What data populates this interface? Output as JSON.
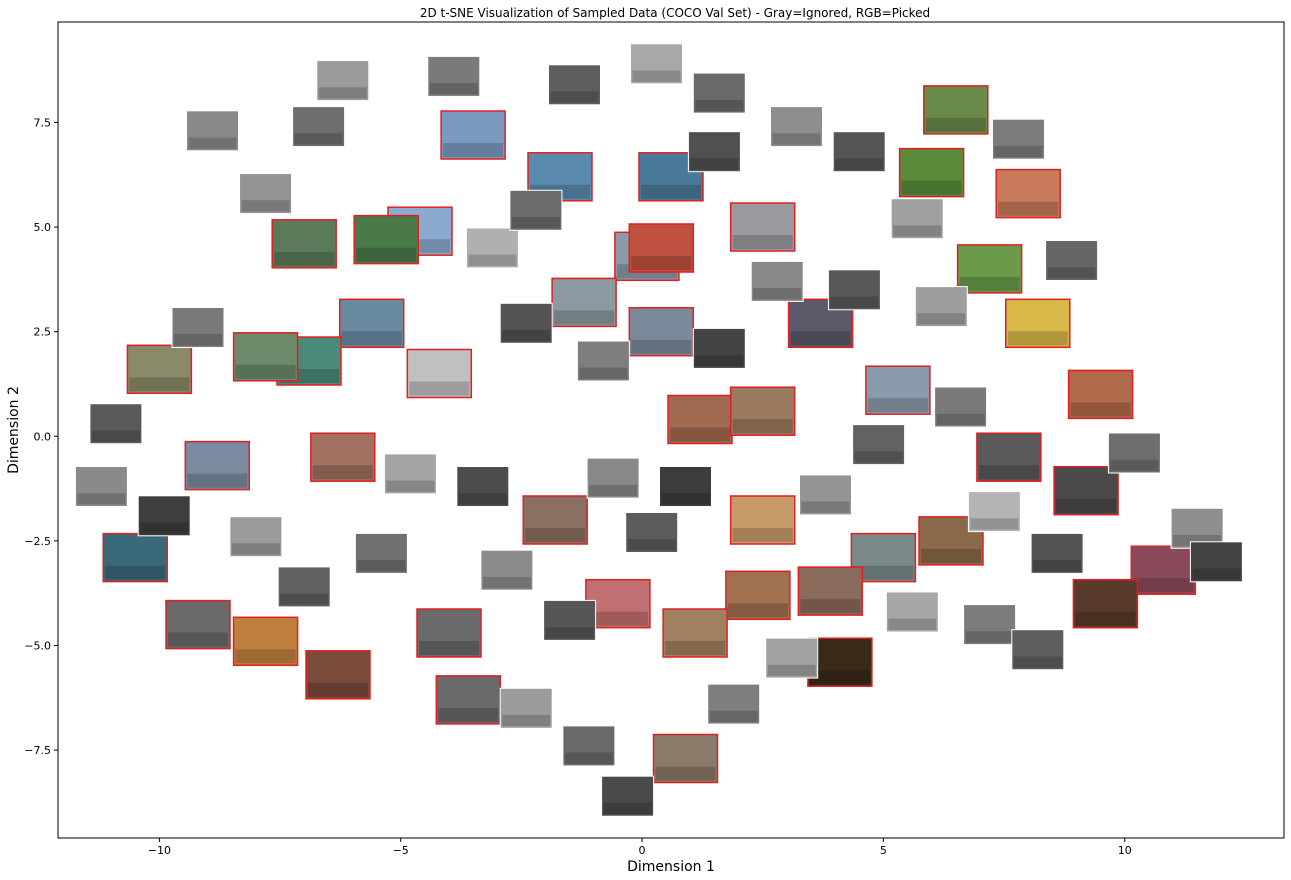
{
  "chart_data": {
    "type": "scatter",
    "title": "2D t-SNE Visualization of Sampled Data (COCO Val Set) - Gray=Ignored, RGB=Picked",
    "xlabel": "Dimension 1",
    "ylabel": "Dimension 2",
    "xlim": [
      -12.1,
      13.3
    ],
    "ylim": [
      -9.6,
      9.9
    ],
    "x_ticks": [
      -10,
      -5,
      0,
      5,
      10
    ],
    "x_tick_labels": [
      "−10",
      "−5",
      "0",
      "5",
      "10"
    ],
    "y_ticks": [
      -7.5,
      -5.0,
      -2.5,
      0.0,
      2.5,
      5.0,
      7.5
    ],
    "y_tick_labels": [
      "−7.5",
      "−5.0",
      "−2.5",
      "0.0",
      "2.5",
      "5.0",
      "7.5"
    ],
    "grid": false,
    "legend": "none",
    "marker": "image-thumbnail",
    "colors": {
      "picked_border": "#e02020",
      "ignored": "#8a8a8a"
    },
    "points": [
      {
        "x": 10.8,
        "y": -3.2,
        "group": "picked",
        "color": "#8b4a5a"
      },
      {
        "x": 9.5,
        "y": 1.0,
        "group": "picked",
        "color": "#b06a4a"
      },
      {
        "x": 8.2,
        "y": 2.7,
        "group": "picked",
        "color": "#d9b84a"
      },
      {
        "x": 8.0,
        "y": 5.8,
        "group": "picked",
        "color": "#c87a5a"
      },
      {
        "x": 6.5,
        "y": 7.8,
        "group": "picked",
        "color": "#6a8a4a"
      },
      {
        "x": 6.0,
        "y": 6.3,
        "group": "picked",
        "color": "#5a8a3a"
      },
      {
        "x": 7.2,
        "y": 4.0,
        "group": "picked",
        "color": "#6a9a4a"
      },
      {
        "x": 9.6,
        "y": -4.0,
        "group": "picked",
        "color": "#5a3a2a"
      },
      {
        "x": 9.2,
        "y": -1.3,
        "group": "picked",
        "color": "#4a4a4a"
      },
      {
        "x": 6.4,
        "y": -2.5,
        "group": "picked",
        "color": "#8a6a4a"
      },
      {
        "x": 5.0,
        "y": -2.9,
        "group": "picked",
        "color": "#7a8a8a"
      },
      {
        "x": 3.9,
        "y": -3.7,
        "group": "picked",
        "color": "#8a6a5a"
      },
      {
        "x": 2.5,
        "y": -2.0,
        "group": "picked",
        "color": "#c89a6a"
      },
      {
        "x": 2.4,
        "y": -3.8,
        "group": "picked",
        "color": "#a07050"
      },
      {
        "x": 4.1,
        "y": -5.4,
        "group": "picked",
        "color": "#3a2a1a"
      },
      {
        "x": 1.2,
        "y": 0.4,
        "group": "picked",
        "color": "#a06a50"
      },
      {
        "x": 2.5,
        "y": 0.6,
        "group": "picked",
        "color": "#9a7a60"
      },
      {
        "x": 0.6,
        "y": 6.2,
        "group": "picked",
        "color": "#4a7a9a"
      },
      {
        "x": -0.5,
        "y": -4.0,
        "group": "picked",
        "color": "#c07070"
      },
      {
        "x": 1.1,
        "y": -4.7,
        "group": "picked",
        "color": "#a08060"
      },
      {
        "x": 0.9,
        "y": -7.7,
        "group": "picked",
        "color": "#8a7a6a"
      },
      {
        "x": -3.6,
        "y": -6.3,
        "group": "picked",
        "color": "#6a6a6a"
      },
      {
        "x": 0.1,
        "y": 4.3,
        "group": "picked",
        "color": "#8a9aaa"
      },
      {
        "x": -1.2,
        "y": 3.2,
        "group": "picked",
        "color": "#8a9aa0"
      },
      {
        "x": 0.4,
        "y": 2.5,
        "group": "picked",
        "color": "#7a8a9a"
      },
      {
        "x": 0.4,
        "y": 4.5,
        "group": "picked",
        "color": "#c05040"
      },
      {
        "x": -1.7,
        "y": 6.2,
        "group": "picked",
        "color": "#5a8ab0"
      },
      {
        "x": -3.5,
        "y": 7.2,
        "group": "picked",
        "color": "#7a9ac0"
      },
      {
        "x": -4.6,
        "y": 4.9,
        "group": "picked",
        "color": "#8aaad0"
      },
      {
        "x": -5.3,
        "y": 4.7,
        "group": "picked",
        "color": "#4a7a4a"
      },
      {
        "x": -5.6,
        "y": 2.7,
        "group": "picked",
        "color": "#6a8aa0"
      },
      {
        "x": -7.0,
        "y": 4.6,
        "group": "picked",
        "color": "#5a7a5a"
      },
      {
        "x": -4.2,
        "y": 1.5,
        "group": "picked",
        "color": "#c0c0c0"
      },
      {
        "x": -6.9,
        "y": 1.8,
        "group": "picked",
        "color": "#4a8a7a"
      },
      {
        "x": -7.8,
        "y": 1.9,
        "group": "picked",
        "color": "#6a8a6a"
      },
      {
        "x": -10.0,
        "y": 1.6,
        "group": "picked",
        "color": "#8a8a6a"
      },
      {
        "x": -6.2,
        "y": -0.5,
        "group": "picked",
        "color": "#a07060"
      },
      {
        "x": -8.8,
        "y": -0.7,
        "group": "picked",
        "color": "#7a8aa0"
      },
      {
        "x": -10.5,
        "y": -2.9,
        "group": "picked",
        "color": "#3a6a7a"
      },
      {
        "x": -9.2,
        "y": -4.5,
        "group": "picked",
        "color": "#6a6a6a"
      },
      {
        "x": -7.8,
        "y": -4.9,
        "group": "picked",
        "color": "#c08040"
      },
      {
        "x": -6.3,
        "y": -5.7,
        "group": "picked",
        "color": "#7a4a3a"
      },
      {
        "x": -4.0,
        "y": -4.7,
        "group": "picked",
        "color": "#6a6a6a"
      },
      {
        "x": -1.8,
        "y": -2.0,
        "group": "picked",
        "color": "#8a7060"
      },
      {
        "x": 7.6,
        "y": -0.5,
        "group": "picked",
        "color": "#5a5a5a"
      },
      {
        "x": 5.3,
        "y": 1.1,
        "group": "picked",
        "color": "#8a9aaa"
      },
      {
        "x": 3.7,
        "y": 2.7,
        "group": "picked",
        "color": "#5a5a6a"
      },
      {
        "x": 2.5,
        "y": 5.0,
        "group": "picked",
        "color": "#9a9aa0"
      },
      {
        "x": -8.9,
        "y": 7.3,
        "group": "ignored",
        "color": "#8a8a8a"
      },
      {
        "x": -6.7,
        "y": 7.4,
        "group": "ignored",
        "color": "#6e6e6e"
      },
      {
        "x": -6.2,
        "y": 8.5,
        "group": "ignored",
        "color": "#9a9a9a"
      },
      {
        "x": -3.9,
        "y": 8.6,
        "group": "ignored",
        "color": "#7a7a7a"
      },
      {
        "x": -1.4,
        "y": 8.4,
        "group": "ignored",
        "color": "#5e5e5e"
      },
      {
        "x": 0.3,
        "y": 8.9,
        "group": "ignored",
        "color": "#a8a8a8"
      },
      {
        "x": 1.6,
        "y": 8.2,
        "group": "ignored",
        "color": "#6a6a6a"
      },
      {
        "x": 3.2,
        "y": 7.4,
        "group": "ignored",
        "color": "#8e8e8e"
      },
      {
        "x": 4.5,
        "y": 6.8,
        "group": "ignored",
        "color": "#555555"
      },
      {
        "x": 5.7,
        "y": 5.2,
        "group": "ignored",
        "color": "#a0a0a0"
      },
      {
        "x": 7.8,
        "y": 7.1,
        "group": "ignored",
        "color": "#7c7c7c"
      },
      {
        "x": 8.9,
        "y": 4.2,
        "group": "ignored",
        "color": "#666666"
      },
      {
        "x": 6.2,
        "y": 3.1,
        "group": "ignored",
        "color": "#9e9e9e"
      },
      {
        "x": 4.4,
        "y": 3.5,
        "group": "ignored",
        "color": "#585858"
      },
      {
        "x": 2.8,
        "y": 3.7,
        "group": "ignored",
        "color": "#888888"
      },
      {
        "x": 1.6,
        "y": 2.1,
        "group": "ignored",
        "color": "#444444"
      },
      {
        "x": -0.8,
        "y": 1.8,
        "group": "ignored",
        "color": "#7e7e7e"
      },
      {
        "x": -2.4,
        "y": 2.7,
        "group": "ignored",
        "color": "#525252"
      },
      {
        "x": -3.1,
        "y": 4.5,
        "group": "ignored",
        "color": "#b0b0b0"
      },
      {
        "x": -2.2,
        "y": 5.4,
        "group": "ignored",
        "color": "#6c6c6c"
      },
      {
        "x": -7.8,
        "y": 5.8,
        "group": "ignored",
        "color": "#949494"
      },
      {
        "x": -9.2,
        "y": 2.6,
        "group": "ignored",
        "color": "#7a7a7a"
      },
      {
        "x": -10.9,
        "y": 0.3,
        "group": "ignored",
        "color": "#5a5a5a"
      },
      {
        "x": -11.2,
        "y": -1.2,
        "group": "ignored",
        "color": "#8a8a8a"
      },
      {
        "x": -9.9,
        "y": -1.9,
        "group": "ignored",
        "color": "#3e3e3e"
      },
      {
        "x": -8.0,
        "y": -2.4,
        "group": "ignored",
        "color": "#9a9a9a"
      },
      {
        "x": -7.0,
        "y": -3.6,
        "group": "ignored",
        "color": "#606060"
      },
      {
        "x": -5.4,
        "y": -2.8,
        "group": "ignored",
        "color": "#707070"
      },
      {
        "x": -4.8,
        "y": -0.9,
        "group": "ignored",
        "color": "#a4a4a4"
      },
      {
        "x": -3.3,
        "y": -1.2,
        "group": "ignored",
        "color": "#4c4c4c"
      },
      {
        "x": -2.8,
        "y": -3.2,
        "group": "ignored",
        "color": "#8c8c8c"
      },
      {
        "x": -1.5,
        "y": -4.4,
        "group": "ignored",
        "color": "#565656"
      },
      {
        "x": -2.4,
        "y": -6.5,
        "group": "ignored",
        "color": "#9c9c9c"
      },
      {
        "x": -1.1,
        "y": -7.4,
        "group": "ignored",
        "color": "#6a6a6a"
      },
      {
        "x": -0.3,
        "y": -8.6,
        "group": "ignored",
        "color": "#4a4a4a"
      },
      {
        "x": 1.9,
        "y": -6.4,
        "group": "ignored",
        "color": "#7e7e7e"
      },
      {
        "x": 3.1,
        "y": -5.3,
        "group": "ignored",
        "color": "#a2a2a2"
      },
      {
        "x": 0.2,
        "y": -2.3,
        "group": "ignored",
        "color": "#5c5c5c"
      },
      {
        "x": -0.6,
        "y": -1.0,
        "group": "ignored",
        "color": "#888888"
      },
      {
        "x": 0.9,
        "y": -1.2,
        "group": "ignored",
        "color": "#3c3c3c"
      },
      {
        "x": 3.8,
        "y": -1.4,
        "group": "ignored",
        "color": "#949494"
      },
      {
        "x": 4.9,
        "y": -0.2,
        "group": "ignored",
        "color": "#626262"
      },
      {
        "x": 6.6,
        "y": 0.7,
        "group": "ignored",
        "color": "#7a7a7a"
      },
      {
        "x": 7.3,
        "y": -1.8,
        "group": "ignored",
        "color": "#b4b4b4"
      },
      {
        "x": 8.6,
        "y": -2.8,
        "group": "ignored",
        "color": "#545454"
      },
      {
        "x": 11.5,
        "y": -2.2,
        "group": "ignored",
        "color": "#8e8e8e"
      },
      {
        "x": 11.9,
        "y": -3.0,
        "group": "ignored",
        "color": "#444444"
      },
      {
        "x": 7.2,
        "y": -4.5,
        "group": "ignored",
        "color": "#7c7c7c"
      },
      {
        "x": 5.6,
        "y": -4.2,
        "group": "ignored",
        "color": "#a6a6a6"
      },
      {
        "x": 8.2,
        "y": -5.1,
        "group": "ignored",
        "color": "#5e5e5e"
      },
      {
        "x": 10.2,
        "y": -0.4,
        "group": "ignored",
        "color": "#6e6e6e"
      },
      {
        "x": 1.5,
        "y": 6.8,
        "group": "ignored",
        "color": "#505050"
      }
    ]
  }
}
